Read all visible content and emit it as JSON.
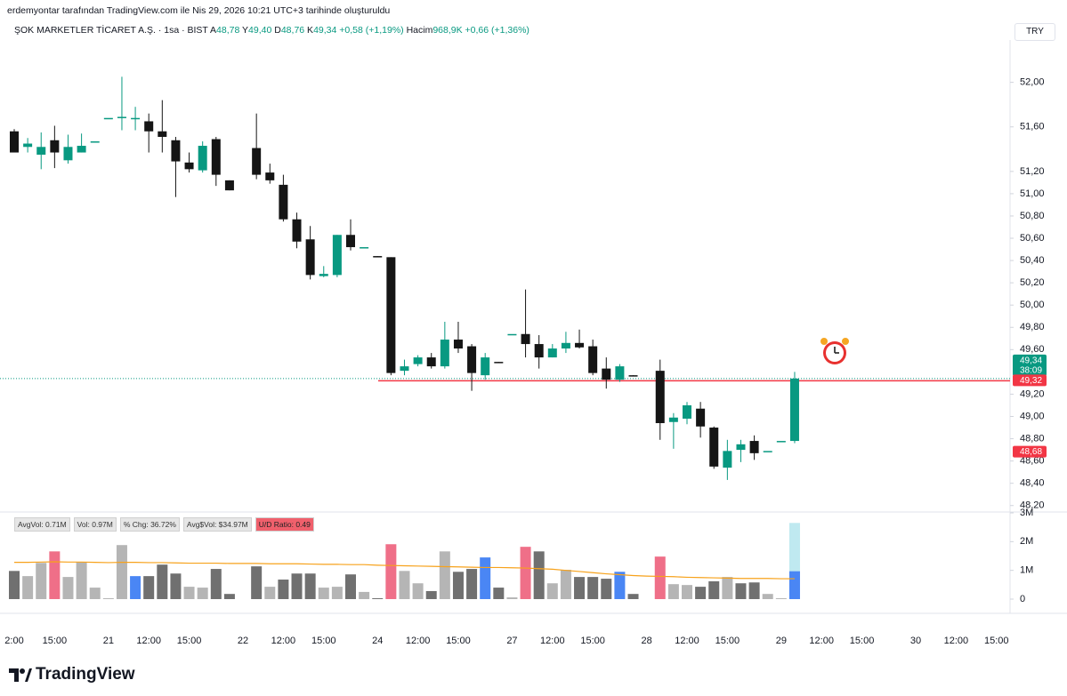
{
  "header": {
    "attribution": "erdemyontar tarafından TradingView.com ile Nis 29, 2026 10:21 UTC+3 tarihinde oluşturuldu",
    "symbol": "ŞOK MARKETLER TİCARET A.Ş. · 1sa · BIST",
    "ohlc": [
      {
        "key": "A",
        "value": "48,78"
      },
      {
        "key": "Y",
        "value": "49,40"
      },
      {
        "key": "D",
        "value": "48,76"
      },
      {
        "key": "K",
        "value": "49,34"
      }
    ],
    "change": "+0,58 (+1,19%)",
    "volume_label": "Hacim",
    "volume_value": "968,9K",
    "volume_change": "+0,66 (+1,36%)"
  },
  "currency": "TRY",
  "logo": "TradingView",
  "chart_data": {
    "type": "candlestick",
    "up_color": "#089981",
    "down_color": "#151515",
    "open": [
      51.56,
      51.42,
      51.35,
      51.48,
      51.3,
      51.37,
      51.47,
      51.68,
      51.68,
      51.68,
      51.65,
      51.56,
      51.48,
      51.28,
      51.21,
      51.49,
      51.12,
      null,
      51.41,
      51.19,
      51.08,
      50.77,
      50.59,
      50.26,
      50.27,
      50.63,
      50.52,
      50.44,
      50.43,
      49.41,
      49.47,
      49.53,
      49.45,
      49.69,
      49.63,
      49.37,
      49.49,
      49.74,
      49.74,
      49.65,
      49.53,
      49.61,
      49.66,
      49.63,
      49.43,
      49.33,
      49.37,
      null,
      49.41,
      48.95,
      48.98,
      49.07,
      48.9,
      48.54,
      48.7,
      48.78,
      48.69,
      48.78,
      48.78
    ],
    "high": [
      51.58,
      51.5,
      51.55,
      51.61,
      51.53,
      51.54,
      51.47,
      51.68,
      52.05,
      51.78,
      51.72,
      51.84,
      51.51,
      51.37,
      51.47,
      51.51,
      51.12,
      null,
      51.72,
      51.27,
      51.17,
      50.83,
      50.71,
      50.35,
      50.63,
      50.77,
      50.52,
      50.44,
      50.43,
      49.51,
      49.55,
      49.57,
      49.85,
      49.85,
      49.65,
      49.57,
      49.49,
      49.74,
      50.14,
      49.73,
      49.65,
      49.76,
      49.78,
      49.69,
      49.53,
      49.47,
      49.37,
      null,
      49.51,
      49.03,
      49.13,
      49.13,
      48.91,
      48.79,
      48.79,
      48.83,
      48.69,
      48.78,
      49.4
    ],
    "low": [
      51.37,
      51.37,
      51.22,
      51.23,
      51.27,
      51.37,
      51.47,
      51.68,
      51.57,
      51.57,
      51.37,
      51.37,
      50.97,
      51.19,
      51.19,
      51.07,
      51.03,
      null,
      51.13,
      51.09,
      50.75,
      50.51,
      50.23,
      50.25,
      50.25,
      50.49,
      50.52,
      50.43,
      49.37,
      49.37,
      49.45,
      49.43,
      49.43,
      49.57,
      49.23,
      49.33,
      49.48,
      49.74,
      49.53,
      49.43,
      49.53,
      49.57,
      49.61,
      49.37,
      49.25,
      49.31,
      49.36,
      null,
      48.79,
      48.71,
      48.93,
      48.81,
      48.53,
      48.43,
      48.59,
      48.61,
      48.69,
      48.78,
      48.76
    ],
    "close": [
      51.37,
      51.45,
      51.42,
      51.37,
      51.42,
      51.43,
      51.47,
      51.68,
      51.69,
      51.68,
      51.56,
      51.51,
      51.29,
      51.22,
      51.43,
      51.17,
      51.03,
      null,
      51.17,
      51.12,
      50.77,
      50.57,
      50.27,
      50.28,
      50.63,
      50.52,
      50.52,
      50.43,
      49.39,
      49.45,
      49.53,
      49.45,
      49.69,
      49.61,
      49.39,
      49.53,
      49.48,
      49.74,
      49.65,
      49.53,
      49.61,
      49.66,
      49.62,
      49.39,
      49.33,
      49.45,
      49.36,
      null,
      48.94,
      48.99,
      49.1,
      48.91,
      48.55,
      48.69,
      48.75,
      48.67,
      48.69,
      48.78,
      49.34
    ],
    "ylim": [
      48.15,
      52.38
    ],
    "yticks": [
      {
        "value": 52,
        "label": "52,00"
      },
      {
        "value": 51.6,
        "label": "51,60"
      },
      {
        "value": 51.2,
        "label": "51,20"
      },
      {
        "value": 51,
        "label": "51,00"
      },
      {
        "value": 50.8,
        "label": "50,80"
      },
      {
        "value": 50.6,
        "label": "50,60"
      },
      {
        "value": 50.4,
        "label": "50,40"
      },
      {
        "value": 50.2,
        "label": "50,20"
      },
      {
        "value": 50,
        "label": "50,00"
      },
      {
        "value": 49.8,
        "label": "49,80"
      },
      {
        "value": 49.6,
        "label": "49,60"
      },
      {
        "value": 49.2,
        "label": "49,20"
      },
      {
        "value": 49,
        "label": "49,00"
      },
      {
        "value": 48.8,
        "label": "48,80"
      },
      {
        "value": 48.6,
        "label": "48,60"
      },
      {
        "value": 48.4,
        "label": "48,40"
      },
      {
        "value": 48.2,
        "label": "48,20"
      }
    ],
    "grid": false,
    "xaxis_labels": [
      "2:00",
      "15:00",
      "21",
      "12:00",
      "15:00",
      "22",
      "12:00",
      "15:00",
      "24",
      "12:00",
      "15:00",
      "27",
      "12:00",
      "15:00",
      "28",
      "12:00",
      "15:00",
      "29",
      "12:00",
      "15:00",
      "30",
      "12:00",
      "15:00"
    ],
    "price_labels": [
      {
        "value": 49.34,
        "label": "49,34",
        "color": "#089981"
      },
      {
        "value": 49.32,
        "label": "49,32",
        "color": "#f23645"
      },
      {
        "value": 48.68,
        "label": "48,68",
        "color": "#f23645"
      }
    ],
    "countdown": "38:09",
    "volume": {
      "values": [
        980000,
        800000,
        1260000,
        1660000,
        770000,
        1290000,
        400000,
        30000,
        1880000,
        800000,
        800000,
        1200000,
        890000,
        430000,
        400000,
        1050000,
        180000,
        null,
        1140000,
        430000,
        680000,
        890000,
        890000,
        400000,
        430000,
        860000,
        250000,
        30000,
        1910000,
        980000,
        550000,
        280000,
        1660000,
        950000,
        1050000,
        1450000,
        400000,
        60000,
        1820000,
        1660000,
        550000,
        1020000,
        770000,
        770000,
        710000,
        950000,
        180000,
        null,
        1480000,
        520000,
        490000,
        430000,
        620000,
        770000,
        550000,
        580000,
        180000,
        30000,
        968900
      ],
      "colors": [
        "#707070",
        "#b5b5b5",
        "#b5b5b5",
        "#ef6f88",
        "#b5b5b5",
        "#b5b5b5",
        "#b5b5b5",
        "#b5b5b5",
        "#b5b5b5",
        "#4a86f4",
        "#707070",
        "#707070",
        "#707070",
        "#b5b5b5",
        "#b5b5b5",
        "#707070",
        "#707070",
        null,
        "#707070",
        "#b5b5b5",
        "#707070",
        "#707070",
        "#707070",
        "#b5b5b5",
        "#b5b5b5",
        "#707070",
        "#b5b5b5",
        "#707070",
        "#ef6f88",
        "#b5b5b5",
        "#b5b5b5",
        "#707070",
        "#b5b5b5",
        "#707070",
        "#707070",
        "#4a86f4",
        "#707070",
        "#b5b5b5",
        "#ef6f88",
        "#707070",
        "#b5b5b5",
        "#b5b5b5",
        "#707070",
        "#707070",
        "#707070",
        "#4a86f4",
        "#707070",
        null,
        "#ef6f88",
        "#b5b5b5",
        "#b5b5b5",
        "#707070",
        "#707070",
        "#b5b5b5",
        "#707070",
        "#707070",
        "#b5b5b5",
        "#b5b5b5",
        "#4a86f4"
      ],
      "projection": 2650000,
      "projection_color": "#bfe9f0",
      "average": [
        1280000,
        1280000,
        1290000,
        1300000,
        1290000,
        1290000,
        1280000,
        1270000,
        1280000,
        1280000,
        1270000,
        1270000,
        1260000,
        1250000,
        1250000,
        1250000,
        1240000,
        1240000,
        1240000,
        1230000,
        1230000,
        1230000,
        1220000,
        1210000,
        1210000,
        1200000,
        1200000,
        1180000,
        1170000,
        1160000,
        1150000,
        1140000,
        1130000,
        1120000,
        1110000,
        1100000,
        1100000,
        1090000,
        1080000,
        1060000,
        1040000,
        1000000,
        960000,
        920000,
        880000,
        850000,
        820000,
        800000,
        790000,
        780000,
        760000,
        750000,
        740000,
        730000,
        720000,
        720000,
        720000,
        710000,
        710000
      ],
      "average_color": "#f7a21b",
      "ylim": [
        0,
        3000000
      ],
      "yticks": [
        {
          "value": 3000000,
          "label": "3M"
        },
        {
          "value": 2000000,
          "label": "2M"
        },
        {
          "value": 1000000,
          "label": "1M"
        },
        0
      ],
      "badges": [
        "AvgVol: 0.71M",
        "Vol: 0.97M",
        "% Chg: 36.72%",
        "Avg$Vol: $34.97M",
        "U/D Ratio: 0.49"
      ]
    }
  }
}
